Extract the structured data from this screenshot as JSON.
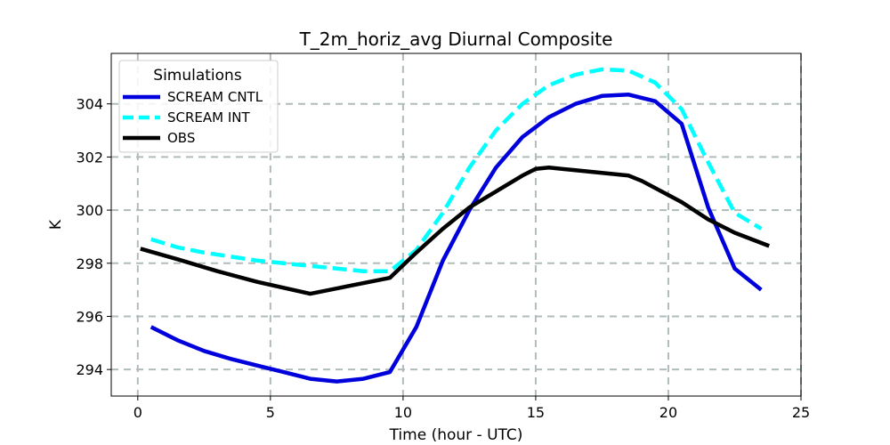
{
  "chart_data": {
    "type": "line",
    "title": "T_2m_horiz_avg Diurnal Composite",
    "xlabel": "Time (hour - UTC)",
    "ylabel": "K",
    "xlim": [
      -1,
      25
    ],
    "ylim": [
      293,
      305.9
    ],
    "xticks": [
      0,
      5,
      10,
      15,
      20,
      25
    ],
    "yticks": [
      294,
      296,
      298,
      300,
      302,
      304
    ],
    "grid": true,
    "legend": {
      "title": "Simulations",
      "placement": "upper-left"
    },
    "series": [
      {
        "name": "SCREAM CNTL",
        "color": "#0000dd",
        "style": "solid",
        "x": [
          0.5,
          1.5,
          2.5,
          3.5,
          4.5,
          5.5,
          6.5,
          7.5,
          8.5,
          9.5,
          10.5,
          11.5,
          12.5,
          13.5,
          14.5,
          15.5,
          16.5,
          17.5,
          18.5,
          19.5,
          20.5,
          21.5,
          22.5,
          23.5
        ],
        "y": [
          295.6,
          295.1,
          294.7,
          294.4,
          294.15,
          293.9,
          293.65,
          293.55,
          293.65,
          293.9,
          295.6,
          298.1,
          300.0,
          301.6,
          302.75,
          303.5,
          304.0,
          304.3,
          304.35,
          304.1,
          303.25,
          300.1,
          297.8,
          297.0
        ]
      },
      {
        "name": "SCREAM INT",
        "color": "#00ffff",
        "style": "dashed",
        "x": [
          0.5,
          1.5,
          2.5,
          3.5,
          4.5,
          5.5,
          6.5,
          7.5,
          8.5,
          9.5,
          10.5,
          11.5,
          12.5,
          13.5,
          14.5,
          15.5,
          16.5,
          17.5,
          18.5,
          19.5,
          20.5,
          21.5,
          22.5,
          23.5
        ],
        "y": [
          298.9,
          298.6,
          298.4,
          298.25,
          298.1,
          298.0,
          297.9,
          297.8,
          297.7,
          297.7,
          298.5,
          299.9,
          301.6,
          303.0,
          304.0,
          304.7,
          305.1,
          305.3,
          305.25,
          304.8,
          303.8,
          301.8,
          299.9,
          299.3
        ]
      },
      {
        "name": "OBS",
        "color": "#000000",
        "style": "solid",
        "x": [
          0.1,
          1.5,
          3.0,
          4.5,
          6.5,
          8.0,
          9.5,
          10.5,
          11.5,
          12.5,
          13.5,
          14.5,
          15.0,
          15.5,
          16.5,
          17.5,
          18.5,
          19.0,
          20.5,
          21.5,
          22.5,
          23.8
        ],
        "y": [
          298.55,
          298.15,
          297.7,
          297.3,
          296.85,
          297.15,
          297.45,
          298.4,
          299.3,
          300.1,
          300.7,
          301.3,
          301.55,
          301.6,
          301.5,
          301.4,
          301.3,
          301.1,
          300.3,
          299.65,
          299.15,
          298.65
        ]
      }
    ]
  }
}
